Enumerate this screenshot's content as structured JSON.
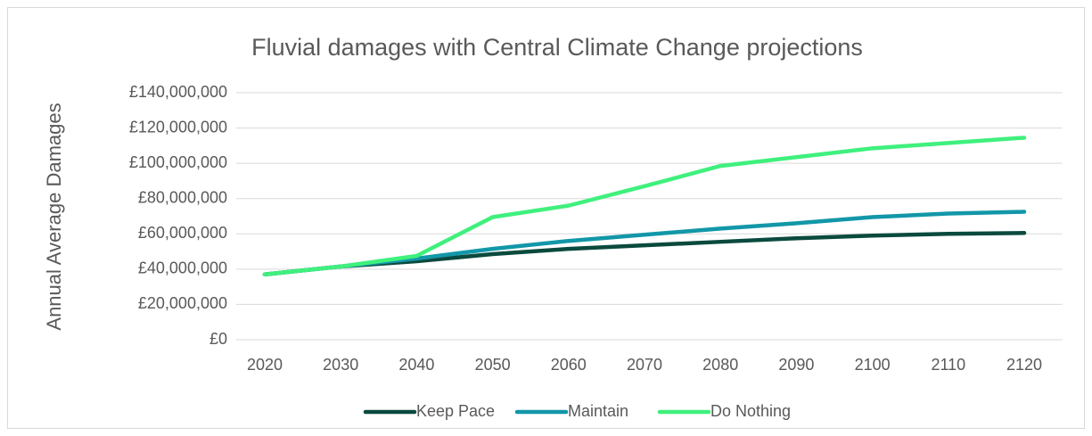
{
  "chart_data": {
    "type": "line",
    "title": "Fluvial damages with Central Climate Change projections",
    "y_label": "Annual Average Damages",
    "categories": [
      "2020",
      "2030",
      "2040",
      "2050",
      "2060",
      "2070",
      "2080",
      "2090",
      "2100",
      "2110",
      "2120"
    ],
    "series": [
      {
        "name": "Keep Pace",
        "color": "#0b4a3e",
        "values": [
          37000000,
          41500000,
          44500000,
          48500000,
          51500000,
          53500000,
          55500000,
          57500000,
          59000000,
          60000000,
          60500000
        ]
      },
      {
        "name": "Maintain",
        "color": "#1297a8",
        "values": [
          37000000,
          41500000,
          46000000,
          51500000,
          56000000,
          59500000,
          63000000,
          66000000,
          69500000,
          71500000,
          72500000
        ]
      },
      {
        "name": "Do Nothing",
        "color": "#3ff07d",
        "values": [
          37000000,
          41500000,
          47500000,
          69500000,
          76000000,
          87000000,
          98500000,
          103500000,
          108500000,
          111500000,
          114500000
        ]
      }
    ],
    "ylim": [
      0,
      140000000
    ],
    "yticks": [
      {
        "value": 0,
        "label": "£0"
      },
      {
        "value": 20000000,
        "label": "£20,000,000"
      },
      {
        "value": 40000000,
        "label": "£40,000,000"
      },
      {
        "value": 60000000,
        "label": "£60,000,000"
      },
      {
        "value": 80000000,
        "label": "£80,000,000"
      },
      {
        "value": 100000000,
        "label": "£100,000,000"
      },
      {
        "value": 120000000,
        "label": "£120,000,000"
      },
      {
        "value": 140000000,
        "label": "£140,000,000"
      }
    ],
    "grid": true,
    "legend": "bottom"
  }
}
